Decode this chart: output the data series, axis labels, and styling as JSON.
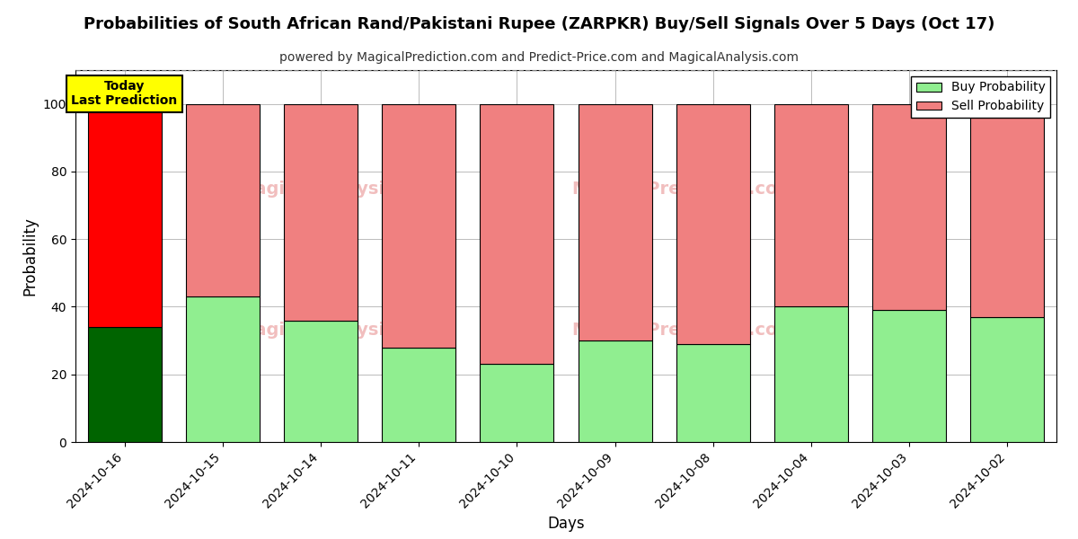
{
  "title": "Probabilities of South African Rand/Pakistani Rupee (ZARPKR) Buy/Sell Signals Over 5 Days (Oct 17)",
  "subtitle": "powered by MagicalPrediction.com and Predict-Price.com and MagicalAnalysis.com",
  "xlabel": "Days",
  "ylabel": "Probability",
  "categories": [
    "2024-10-16",
    "2024-10-15",
    "2024-10-14",
    "2024-10-11",
    "2024-10-10",
    "2024-10-09",
    "2024-10-08",
    "2024-10-04",
    "2024-10-03",
    "2024-10-02"
  ],
  "buy_values": [
    34,
    43,
    36,
    28,
    23,
    30,
    29,
    40,
    39,
    37
  ],
  "sell_values": [
    66,
    57,
    64,
    72,
    77,
    70,
    71,
    60,
    61,
    63
  ],
  "today_bar_buy_color": "#006400",
  "today_bar_sell_color": "#ff0000",
  "other_bar_buy_color": "#90EE90",
  "other_bar_sell_color": "#F08080",
  "bar_edgecolor": "#000000",
  "ylim": [
    0,
    110
  ],
  "yticks": [
    0,
    20,
    40,
    60,
    80,
    100
  ],
  "dashed_line_y": 110,
  "legend_buy_label": "Buy Probability",
  "legend_sell_label": "Sell Probability",
  "today_label": "Today\nLast Prediction",
  "background_color": "#ffffff",
  "grid_color": "#bbbbbb",
  "title_fontsize": 13,
  "subtitle_fontsize": 10,
  "axis_label_fontsize": 12,
  "tick_fontsize": 10,
  "bar_width": 0.75
}
